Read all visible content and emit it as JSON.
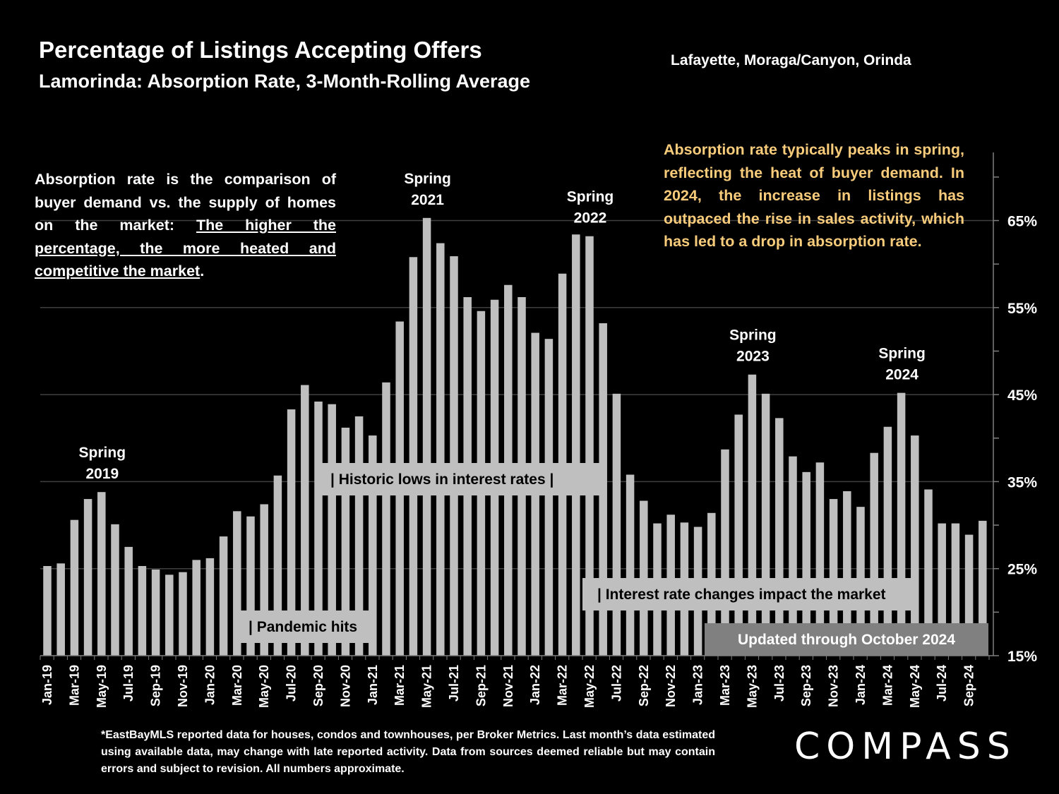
{
  "header": {
    "title": "Percentage of Listings Accepting Offers",
    "subtitle": "Lamorinda:  Absorption Rate, 3-Month-Rolling Average",
    "region": "Lafayette, Moraga/Canyon, Orinda"
  },
  "notes": {
    "left_plain": "Absorption rate is the comparison of buyer demand vs. the supply of homes on the market: ",
    "left_underlined": "The higher the percentage, the more heated and competitive the market",
    "left_end": ".",
    "right": "Absorption rate typically peaks in spring, reflecting the heat of buyer demand. In 2024, the increase in listings has outpaced the rise in sales activity, which has led to a drop in absorption rate."
  },
  "footnote": "*EastBayMLS reported data for houses, condos and townhouses, per Broker Metrics. Last month’s data estimated using available data, may change with late reported activity. Data from sources deemed reliable but may contain errors and subject to revision. All numbers approximate.",
  "logo": "COMPASS",
  "colors": {
    "background": "#000000",
    "bar": "#bfbfbf",
    "grid": "#404040",
    "note_gold": "#f8cc7a",
    "label_box": "#bfbfbf",
    "updated_box": "#808080"
  },
  "chart_data": {
    "type": "bar",
    "y_axis_side": "right",
    "ylim": [
      15,
      72
    ],
    "ytick_values": [
      15,
      25,
      35,
      45,
      55,
      65
    ],
    "ytick_labels": [
      "15%",
      "25%",
      "35%",
      "45%",
      "55%",
      "65%"
    ],
    "grid": true,
    "categories": [
      "Jan-19",
      "Feb-19",
      "Mar-19",
      "Apr-19",
      "May-19",
      "Jun-19",
      "Jul-19",
      "Aug-19",
      "Sep-19",
      "Oct-19",
      "Nov-19",
      "Dec-19",
      "Jan-20",
      "Feb-20",
      "Mar-20",
      "Apr-20",
      "May-20",
      "Jun-20",
      "Jul-20",
      "Aug-20",
      "Sep-20",
      "Oct-20",
      "Nov-20",
      "Dec-20",
      "Jan-21",
      "Feb-21",
      "Mar-21",
      "Apr-21",
      "May-21",
      "Jun-21",
      "Jul-21",
      "Aug-21",
      "Sep-21",
      "Oct-21",
      "Nov-21",
      "Dec-21",
      "Jan-22",
      "Feb-22",
      "Mar-22",
      "Apr-22",
      "May-22",
      "Jun-22",
      "Jul-22",
      "Aug-22",
      "Sep-22",
      "Oct-22",
      "Nov-22",
      "Dec-22",
      "Jan-23",
      "Feb-23",
      "Mar-23",
      "Apr-23",
      "May-23",
      "Jun-23",
      "Jul-23",
      "Aug-23",
      "Sep-23",
      "Oct-23",
      "Nov-23",
      "Dec-23",
      "Jan-24",
      "Feb-24",
      "Mar-24",
      "Apr-24",
      "May-24",
      "Jun-24",
      "Jul-24",
      "Aug-24",
      "Sep-24",
      "Oct-24"
    ],
    "xtick_labels": [
      "Jan-19",
      "Mar-19",
      "May-19",
      "Jul-19",
      "Sep-19",
      "Nov-19",
      "Jan-20",
      "Mar-20",
      "May-20",
      "Jul-20",
      "Sep-20",
      "Nov-20",
      "Jan-21",
      "Mar-21",
      "May-21",
      "Jul-21",
      "Sep-21",
      "Nov-21",
      "Jan-22",
      "Mar-22",
      "May-22",
      "Jul-22",
      "Sep-22",
      "Nov-22",
      "Jan-23",
      "Mar-23",
      "May-23",
      "Jul-23",
      "Sep-23",
      "Nov-23",
      "Jan-24",
      "Mar-24",
      "May-24",
      "Jul-24",
      "Sep-24"
    ],
    "values": [
      25.3,
      25.6,
      30.6,
      33.0,
      33.8,
      30.1,
      27.5,
      25.3,
      24.9,
      24.3,
      24.6,
      26.0,
      26.2,
      28.7,
      31.6,
      31.0,
      32.4,
      35.7,
      43.3,
      46.1,
      44.2,
      43.9,
      41.2,
      42.5,
      40.3,
      46.4,
      53.4,
      60.8,
      65.3,
      62.4,
      60.9,
      56.2,
      54.6,
      55.9,
      57.6,
      56.2,
      52.1,
      51.4,
      58.9,
      63.4,
      63.2,
      53.2,
      45.1,
      35.8,
      32.8,
      30.2,
      31.2,
      30.3,
      29.8,
      31.4,
      38.7,
      42.7,
      47.3,
      45.1,
      42.3,
      37.9,
      36.1,
      37.2,
      33.0,
      33.9,
      32.1,
      38.3,
      41.3,
      45.2,
      40.3,
      34.1,
      30.2,
      30.2,
      28.9,
      30.5
    ],
    "annotations": [
      {
        "label": "Spring 2019",
        "line1": "Spring",
        "line2": "2019",
        "index": 4
      },
      {
        "label": "Spring 2021",
        "line1": "Spring",
        "line2": "2021",
        "index": 28
      },
      {
        "label": "Spring 2022",
        "line1": "Spring",
        "line2": "2022",
        "index": 40
      },
      {
        "label": "Spring 2023",
        "line1": "Spring",
        "line2": "2023",
        "index": 52
      },
      {
        "label": "Spring 2024",
        "line1": "Spring",
        "line2": "2024",
        "index": 63
      }
    ],
    "period_labels": {
      "pandemic": "| Pandemic hits",
      "historic_lows": "|    Historic lows in interest rates     |",
      "rate_changes": "| Interest rate changes impact the market",
      "updated": "Updated through October 2024"
    }
  }
}
